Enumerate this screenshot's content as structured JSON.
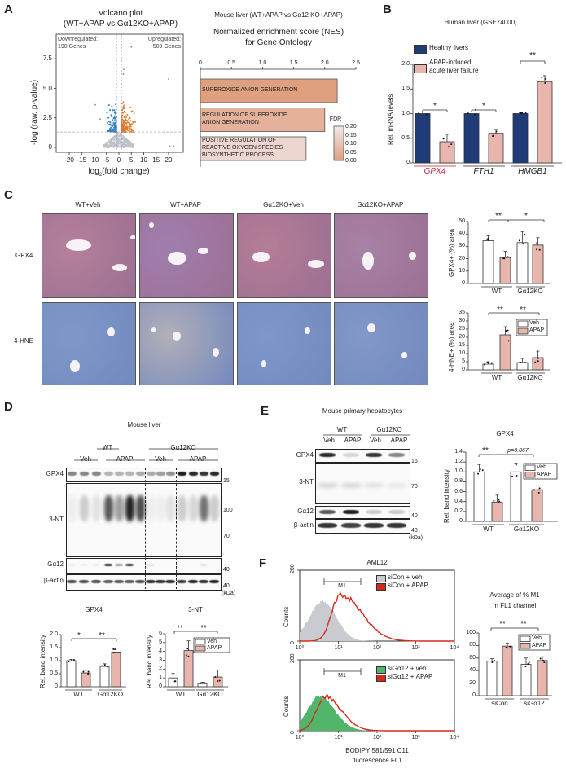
{
  "panel_labels": {
    "A": "A",
    "B": "B",
    "C": "C",
    "D": "D",
    "E": "E",
    "F": "F"
  },
  "panel_a": {
    "volcano": {
      "title_line1": "Volcano plot",
      "title_line2": "(WT+APAP vs Gα12KO+APAP)",
      "down_label": "Downregulated:",
      "down_count": "190 Genes",
      "up_label": "Upregulated:",
      "up_count": "509 Genes",
      "ylabel": "-log (raw. p-value)",
      "xlabel_pre": "log",
      "xlabel_sub": "2",
      "xlabel_post": "(fold change)",
      "yticks": [
        "0",
        "2.5",
        "5.0",
        "7.5"
      ],
      "xticks": [
        "-20",
        "-15",
        "-10",
        "-5",
        "0",
        "5",
        "10",
        "15",
        "20"
      ]
    },
    "nes": {
      "title_line1": "Mouse liver (WT+APAP vs Gα12 KO+APAP)",
      "title_line2": "Normalized enrichment score (NES)",
      "title_line3": "for Gene Ontology",
      "xticks": [
        "0",
        "0.5",
        "1.0",
        "1.5",
        "2.0",
        "2.5"
      ],
      "bars": [
        {
          "line1": "SUPEROXIDE ANION GENERATION",
          "line2": "",
          "line3": ""
        },
        {
          "line1": "REGULATION OF SUPEROXIDE",
          "line2": "ANION GENERATION",
          "line3": ""
        },
        {
          "line1": "POSITIVE REGULATION OF",
          "line2": "REACTIVE OXYGEN SPECIES",
          "line3": "BIOSYNTHETIC PROCESS"
        }
      ],
      "fdr_label": "FDR",
      "fdr_ticks": [
        "0.20",
        "0.15",
        "0.10",
        "0.05",
        "0.00"
      ]
    }
  },
  "panel_b": {
    "title": "Human liver (GSE74000)",
    "legend_healthy": "Healthy livers",
    "legend_apap_line1": "APAP-induced",
    "legend_apap_line2": "acute liver failure",
    "ylabel": "Rel. mRNA levels",
    "sig": [
      "*",
      "*",
      "**"
    ]
  },
  "panel_c": {
    "columns": [
      "WT+Veh",
      "WT+APAP",
      "Gα12KO+Veh",
      "Gα12KO+APAP"
    ],
    "rows": [
      "GPX4",
      "4-HNE"
    ],
    "gpx4_ylabel": "GPX4+ (%) area",
    "hne_ylabel": "4-HNE+ (%) area",
    "gpx4_sig": [
      "**",
      "*"
    ],
    "hne_sig": [
      "**",
      "**"
    ]
  },
  "panel_d": {
    "title": "Mouse liver",
    "group_wt": "WT",
    "group_ko": "Gα12KO",
    "veh": "Veh",
    "apap": "APAP",
    "blot_rows": [
      "GPX4",
      "3-NT",
      "Gα12",
      "β-actin"
    ],
    "markers": [
      "15",
      "100",
      "70",
      "40",
      "40"
    ],
    "kda": "(kDa)",
    "gpx4_title": "GPX4",
    "nt_title": "3-NT",
    "ylabel": "Rel. band intensity",
    "gpx4_sig": [
      "*",
      "**"
    ],
    "nt_sig": [
      "**",
      "**"
    ]
  },
  "panel_e": {
    "title": "Mouse primary hepatocytes",
    "group_wt": "WT",
    "group_ko": "Gα12KO",
    "lanes": [
      "Veh",
      "APAP",
      "Veh",
      "APAP"
    ],
    "blot_rows": [
      "GPX4",
      "3-NT",
      "Gα12",
      "β-actin"
    ],
    "markers": [
      "15",
      "70",
      "40",
      "40"
    ],
    "kda": "(kDa)",
    "chart_title": "GPX4",
    "ylabel": "Rel. band intensity",
    "sig": [
      "**",
      "p=0.067"
    ]
  },
  "panel_f": {
    "title": "AML12",
    "hist_ylabel": "Counts",
    "hist_yticks": [
      "0",
      "200"
    ],
    "hist_xticks": [
      "10⁰",
      "10¹",
      "10²",
      "10³",
      "10⁴"
    ],
    "gate": "M1",
    "legend_top": [
      "siCon + veh",
      "siCon + APAP"
    ],
    "legend_bottom": [
      "siGα12 + veh",
      "siGα12 + APAP"
    ],
    "xlabel_line1": "BODIPY 581/591 C11",
    "xlabel_line2": "fluorescence FL1",
    "chart_title_line1": "Average of % M1",
    "chart_title_line2": "in FL1 channel",
    "sig": [
      "**",
      "**"
    ]
  },
  "colors": {
    "healthy": "#1f3b78",
    "apap": "#e9b6ae",
    "veh": "#ffffff",
    "gpx4_red": "#c0283a",
    "upregulated": "#e07a2e",
    "downregulated": "#2f7fc1",
    "hist_gray": "#c9cbd0",
    "hist_red": "#d42a1c",
    "hist_green": "#52b66a"
  },
  "chart_data": [
    {
      "id": "nes",
      "type": "bar",
      "orientation": "horizontal",
      "title": "Normalized enrichment score (NES) for Gene Ontology",
      "categories": [
        "SUPEROXIDE ANION GENERATION",
        "REGULATION OF SUPEROXIDE ANION GENERATION",
        "POSITIVE REGULATION OF REACTIVE OXYGEN SPECIES BIOSYNTHETIC PROCESS"
      ],
      "values": [
        2.2,
        2.0,
        1.7
      ],
      "fdr": [
        0.0,
        0.05,
        0.15
      ],
      "xlim": [
        0,
        2.5
      ]
    },
    {
      "id": "b",
      "type": "bar",
      "title": "Human liver (GSE74000)",
      "ylabel": "Rel. mRNA levels",
      "ylim": [
        0,
        2
      ],
      "yticks": [
        "0",
        "0.5",
        "1.0",
        "1.5",
        "2.0"
      ],
      "groups": [
        "GPX4",
        "FTH1",
        "HMGB1"
      ],
      "series": [
        {
          "name": "Healthy livers",
          "values": [
            1.0,
            1.0,
            1.0
          ],
          "errors": [
            0,
            0,
            0.02
          ]
        },
        {
          "name": "APAP-induced acute liver failure",
          "values": [
            0.43,
            0.6,
            1.65
          ],
          "errors": [
            0.15,
            0.08,
            0.12
          ]
        }
      ]
    },
    {
      "id": "c_gpx4",
      "type": "bar",
      "ylabel": "GPX4+ (%) area",
      "ylim": [
        0,
        50
      ],
      "yticks": [
        "0",
        "10",
        "20",
        "30",
        "40",
        "50"
      ],
      "groups": [
        "WT",
        "Gα12KO"
      ],
      "series": [
        {
          "name": "Veh",
          "values": [
            34.5,
            33
          ],
          "errors": [
            4,
            9
          ]
        },
        {
          "name": "APAP",
          "values": [
            21,
            31
          ],
          "errors": [
            5,
            6
          ]
        }
      ]
    },
    {
      "id": "c_hne",
      "type": "bar",
      "ylabel": "4-HNE+ (%) area",
      "ylim": [
        0,
        35
      ],
      "yticks": [
        "0",
        "5",
        "10",
        "15",
        "20",
        "25",
        "30",
        "35"
      ],
      "groups": [
        "WT",
        "Gα12KO"
      ],
      "legend": [
        "Veh",
        "APAP"
      ],
      "series": [
        {
          "name": "Veh",
          "values": [
            3.5,
            4.5
          ],
          "errors": [
            1.5,
            2.5
          ]
        },
        {
          "name": "APAP",
          "values": [
            21.5,
            7.5
          ],
          "errors": [
            5,
            4
          ]
        }
      ]
    },
    {
      "id": "d_gpx4",
      "type": "bar",
      "title": "GPX4",
      "ylabel": "Rel. band intensity",
      "ylim": [
        0,
        2
      ],
      "yticks": [
        "0",
        "0.5",
        "1.0",
        "1.5",
        "2.0"
      ],
      "groups": [
        "WT",
        "Gα12KO"
      ],
      "series": [
        {
          "name": "Veh",
          "values": [
            1.0,
            0.78
          ],
          "errors": [
            0.05,
            0.1
          ]
        },
        {
          "name": "APAP",
          "values": [
            0.53,
            1.33
          ],
          "errors": [
            0.1,
            0.15
          ]
        }
      ]
    },
    {
      "id": "d_nt",
      "type": "bar",
      "title": "3-NT",
      "ylabel": "Rel. band intensity",
      "ylim": [
        0,
        6
      ],
      "yticks": [
        "0",
        "1",
        "2",
        "3",
        "4",
        "5",
        "6"
      ],
      "groups": [
        "WT",
        "Gα12KO"
      ],
      "legend": [
        "Veh",
        "APAP"
      ],
      "series": [
        {
          "name": "Veh",
          "values": [
            1.0,
            0.35
          ],
          "errors": [
            0.5,
            0.15
          ]
        },
        {
          "name": "APAP",
          "values": [
            4.1,
            1.1
          ],
          "errors": [
            1.1,
            0.8
          ]
        }
      ]
    },
    {
      "id": "e_gpx4",
      "type": "bar",
      "title": "GPX4",
      "ylabel": "Rel. band intensity",
      "ylim": [
        0,
        1.4
      ],
      "yticks": [
        "0",
        "0.2",
        "0.4",
        "0.6",
        "0.8",
        "1.0",
        "1.2",
        "1.4"
      ],
      "groups": [
        "WT",
        "Gα12KO"
      ],
      "legend": [
        "Veh",
        "APAP"
      ],
      "series": [
        {
          "name": "Veh",
          "values": [
            1.0,
            1.0
          ],
          "errors": [
            0.15,
            0.18
          ]
        },
        {
          "name": "APAP",
          "values": [
            0.39,
            0.64
          ],
          "errors": [
            0.14,
            0.08
          ]
        }
      ]
    },
    {
      "id": "f_m1",
      "type": "bar",
      "title": "Average of % M1 in FL1 channel",
      "ylim": [
        0,
        100
      ],
      "yticks": [
        "0",
        "20",
        "40",
        "60",
        "80",
        "100"
      ],
      "groups": [
        "siCon",
        "siGα12"
      ],
      "legend": [
        "Veh",
        "APAP"
      ],
      "series": [
        {
          "name": "Veh",
          "values": [
            55,
            50
          ],
          "errors": [
            4,
            10
          ]
        },
        {
          "name": "APAP",
          "values": [
            79,
            56
          ],
          "errors": [
            5,
            6
          ]
        }
      ]
    }
  ]
}
